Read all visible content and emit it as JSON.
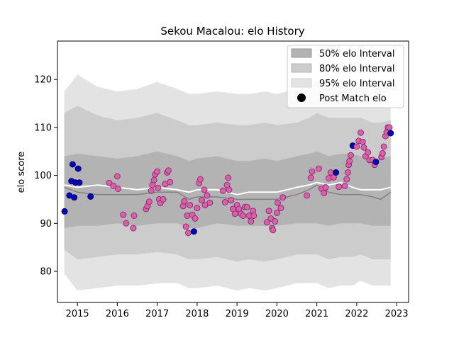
{
  "chart_data": {
    "type": "area",
    "title": "Sekou Macalou: elo History",
    "xlabel": "",
    "ylabel": "elo score",
    "xlim": [
      2014.5,
      2023.3
    ],
    "ylim": [
      73.5,
      128
    ],
    "x_ticks": [
      2015,
      2016,
      2017,
      2018,
      2019,
      2020,
      2021,
      2022,
      2023
    ],
    "y_ticks": [
      80,
      90,
      100,
      110,
      120
    ],
    "grid": false,
    "legend": {
      "placement": "top-right",
      "entries": [
        "50% elo Interval",
        "80% elo Interval",
        "95% elo Interval",
        "Post Match elo"
      ]
    },
    "colors": {
      "band50": "#b3b3b3",
      "band80": "#cccccc",
      "band95": "#e3e3e3",
      "median": "#808080",
      "mean": "#ffffff",
      "marker_early": "#0000cc",
      "marker_later": "#e75aa8",
      "marker_edge_later": "#7a3a7a",
      "marker_edge_early": "#00004d"
    },
    "bands": {
      "x": [
        2014.67,
        2015.0,
        2015.5,
        2016.0,
        2016.5,
        2017.0,
        2017.5,
        2017.8,
        2018.0,
        2018.5,
        2019.0,
        2019.3,
        2019.7,
        2020.0,
        2020.5,
        2020.8,
        2021.0,
        2021.3,
        2021.6,
        2021.9,
        2022.1,
        2022.4,
        2022.6,
        2022.85
      ],
      "p2_5": [
        79.5,
        76.0,
        76.5,
        77.0,
        77.0,
        77.5,
        77.5,
        76.5,
        76.5,
        77.0,
        76.0,
        76.5,
        76.0,
        76.5,
        77.5,
        77.5,
        77.5,
        76.5,
        77.0,
        77.0,
        78.0,
        77.0,
        77.0,
        77.0
      ],
      "p10": [
        84.5,
        82.5,
        83.0,
        83.5,
        83.5,
        84.0,
        83.5,
        82.5,
        82.5,
        83.0,
        82.0,
        82.5,
        82.0,
        82.5,
        83.5,
        83.5,
        83.5,
        82.5,
        83.0,
        83.0,
        83.5,
        82.5,
        82.5,
        82.5
      ],
      "p25": [
        89.0,
        89.5,
        89.5,
        90.0,
        89.5,
        90.0,
        90.0,
        89.0,
        89.0,
        90.0,
        89.5,
        89.5,
        89.5,
        89.5,
        90.0,
        90.0,
        90.0,
        89.5,
        90.0,
        90.0,
        90.0,
        89.5,
        89.5,
        89.5
      ],
      "median": [
        97.5,
        96.5,
        96.0,
        96.0,
        96.0,
        96.5,
        96.5,
        95.0,
        95.5,
        95.5,
        95.0,
        95.0,
        95.0,
        95.0,
        96.0,
        97.0,
        98.0,
        96.5,
        96.0,
        96.0,
        96.0,
        95.5,
        95.0,
        96.5
      ],
      "mean": [
        98.0,
        97.5,
        98.0,
        97.5,
        97.0,
        97.5,
        97.0,
        96.5,
        97.0,
        97.0,
        96.0,
        96.5,
        96.5,
        96.5,
        97.5,
        98.0,
        98.5,
        98.0,
        98.5,
        97.5,
        97.0,
        97.0,
        97.0,
        97.5
      ],
      "p75": [
        104.0,
        104.5,
        104.0,
        103.5,
        104.0,
        105.0,
        104.0,
        103.0,
        103.5,
        104.0,
        103.0,
        103.0,
        103.5,
        103.0,
        104.0,
        104.5,
        105.0,
        104.0,
        104.5,
        104.5,
        104.0,
        103.5,
        103.5,
        104.0
      ],
      "p90": [
        113.0,
        114.5,
        112.5,
        111.5,
        112.0,
        113.0,
        111.5,
        110.5,
        110.5,
        111.0,
        110.5,
        110.5,
        111.0,
        110.5,
        111.0,
        112.0,
        113.0,
        112.0,
        112.0,
        112.0,
        112.0,
        111.0,
        111.0,
        111.5
      ],
      "p97_5": [
        117.5,
        121.0,
        118.5,
        117.5,
        118.0,
        119.5,
        118.0,
        117.0,
        117.0,
        117.5,
        117.0,
        117.0,
        117.5,
        117.0,
        118.0,
        118.5,
        119.5,
        118.5,
        118.5,
        118.5,
        118.0,
        117.5,
        117.5,
        118.0
      ]
    },
    "series": [
      {
        "name": "Post Match elo",
        "points": [
          [
            2014.68,
            92.5,
            "early"
          ],
          [
            2014.8,
            95.8,
            "early"
          ],
          [
            2014.85,
            98.8,
            "early"
          ],
          [
            2014.88,
            102.3,
            "early"
          ],
          [
            2014.92,
            95.4,
            "early"
          ],
          [
            2014.95,
            98.5,
            "early"
          ],
          [
            2015.02,
            101.4,
            "early"
          ],
          [
            2015.05,
            98.5,
            "early"
          ],
          [
            2015.33,
            95.6,
            "early"
          ],
          [
            2015.8,
            98.4,
            "later"
          ],
          [
            2015.9,
            97.8,
            "later"
          ],
          [
            2016.0,
            99.8,
            "later"
          ],
          [
            2016.02,
            97.2,
            "later"
          ],
          [
            2016.15,
            91.8,
            "later"
          ],
          [
            2016.22,
            90.0,
            "later"
          ],
          [
            2016.4,
            89.0,
            "later"
          ],
          [
            2016.42,
            91.6,
            "later"
          ],
          [
            2016.72,
            93.0,
            "later"
          ],
          [
            2016.76,
            93.6,
            "later"
          ],
          [
            2016.8,
            94.5,
            "later"
          ],
          [
            2016.85,
            96.8,
            "later"
          ],
          [
            2016.88,
            98.0,
            "later"
          ],
          [
            2016.92,
            99.0,
            "later"
          ],
          [
            2016.95,
            100.2,
            "later"
          ],
          [
            2017.0,
            100.8,
            "later"
          ],
          [
            2017.02,
            97.4,
            "later"
          ],
          [
            2017.05,
            95.0,
            "later"
          ],
          [
            2017.08,
            94.2,
            "later"
          ],
          [
            2017.15,
            95.0,
            "later"
          ],
          [
            2017.2,
            98.2,
            "later"
          ],
          [
            2017.25,
            100.6,
            "later"
          ],
          [
            2017.28,
            101.0,
            "later"
          ],
          [
            2017.32,
            98.6,
            "later"
          ],
          [
            2017.65,
            93.6,
            "later"
          ],
          [
            2017.68,
            94.6,
            "later"
          ],
          [
            2017.72,
            89.3,
            "later"
          ],
          [
            2017.75,
            91.6,
            "later"
          ],
          [
            2017.78,
            88.0,
            "later"
          ],
          [
            2017.82,
            93.8,
            "later"
          ],
          [
            2017.88,
            91.8,
            "later"
          ],
          [
            2017.92,
            88.3,
            "early"
          ],
          [
            2017.95,
            91.0,
            "later"
          ],
          [
            2018.0,
            93.2,
            "later"
          ],
          [
            2018.05,
            98.4,
            "later"
          ],
          [
            2018.08,
            99.2,
            "later"
          ],
          [
            2018.12,
            94.8,
            "later"
          ],
          [
            2018.18,
            97.0,
            "later"
          ],
          [
            2018.2,
            93.8,
            "later"
          ],
          [
            2018.25,
            95.8,
            "later"
          ],
          [
            2018.32,
            94.3,
            "later"
          ],
          [
            2018.65,
            96.8,
            "later"
          ],
          [
            2018.7,
            94.4,
            "later"
          ],
          [
            2018.75,
            98.0,
            "later"
          ],
          [
            2018.78,
            99.5,
            "later"
          ],
          [
            2018.8,
            97.0,
            "later"
          ],
          [
            2018.85,
            94.8,
            "later"
          ],
          [
            2018.9,
            93.0,
            "later"
          ],
          [
            2018.95,
            92.0,
            "later"
          ],
          [
            2019.0,
            93.8,
            "later"
          ],
          [
            2019.05,
            93.0,
            "later"
          ],
          [
            2019.1,
            92.0,
            "later"
          ],
          [
            2019.15,
            91.6,
            "later"
          ],
          [
            2019.2,
            93.4,
            "later"
          ],
          [
            2019.25,
            93.4,
            "later"
          ],
          [
            2019.3,
            91.6,
            "later"
          ],
          [
            2019.35,
            90.4,
            "later"
          ],
          [
            2019.4,
            92.6,
            "later"
          ],
          [
            2019.42,
            91.6,
            "later"
          ],
          [
            2019.75,
            90.2,
            "later"
          ],
          [
            2019.8,
            92.6,
            "later"
          ],
          [
            2019.85,
            91.0,
            "later"
          ],
          [
            2019.88,
            89.0,
            "later"
          ],
          [
            2019.9,
            88.6,
            "later"
          ],
          [
            2019.95,
            90.4,
            "later"
          ],
          [
            2020.0,
            92.2,
            "later"
          ],
          [
            2020.02,
            94.3,
            "later"
          ],
          [
            2020.1,
            93.2,
            "later"
          ],
          [
            2020.15,
            95.4,
            "later"
          ],
          [
            2020.75,
            95.8,
            "later"
          ],
          [
            2020.85,
            99.5,
            "later"
          ],
          [
            2020.88,
            100.8,
            "later"
          ],
          [
            2021.05,
            101.4,
            "later"
          ],
          [
            2021.12,
            97.2,
            "later"
          ],
          [
            2021.18,
            96.3,
            "later"
          ],
          [
            2021.22,
            97.5,
            "later"
          ],
          [
            2021.3,
            99.4,
            "later"
          ],
          [
            2021.35,
            100.6,
            "later"
          ],
          [
            2021.42,
            99.6,
            "later"
          ],
          [
            2021.48,
            100.6,
            "early"
          ],
          [
            2021.55,
            97.6,
            "later"
          ],
          [
            2021.7,
            97.8,
            "later"
          ],
          [
            2021.75,
            99.2,
            "later"
          ],
          [
            2021.78,
            100.6,
            "later"
          ],
          [
            2021.8,
            102.2,
            "later"
          ],
          [
            2021.82,
            103.0,
            "later"
          ],
          [
            2021.85,
            104.2,
            "later"
          ],
          [
            2021.9,
            106.2,
            "early"
          ],
          [
            2022.0,
            106.0,
            "later"
          ],
          [
            2022.05,
            107.2,
            "later"
          ],
          [
            2022.1,
            108.9,
            "later"
          ],
          [
            2022.15,
            107.0,
            "later"
          ],
          [
            2022.18,
            105.8,
            "later"
          ],
          [
            2022.22,
            104.0,
            "later"
          ],
          [
            2022.28,
            104.8,
            "later"
          ],
          [
            2022.32,
            103.2,
            "later"
          ],
          [
            2022.4,
            103.2,
            "later"
          ],
          [
            2022.45,
            102.2,
            "later"
          ],
          [
            2022.48,
            102.8,
            "early"
          ],
          [
            2022.62,
            103.8,
            "later"
          ],
          [
            2022.65,
            104.6,
            "later"
          ],
          [
            2022.68,
            106.0,
            "later"
          ],
          [
            2022.72,
            108.2,
            "later"
          ],
          [
            2022.75,
            109.0,
            "later"
          ],
          [
            2022.78,
            110.0,
            "later"
          ],
          [
            2022.82,
            110.0,
            "later"
          ],
          [
            2022.85,
            108.8,
            "early"
          ]
        ]
      }
    ]
  }
}
